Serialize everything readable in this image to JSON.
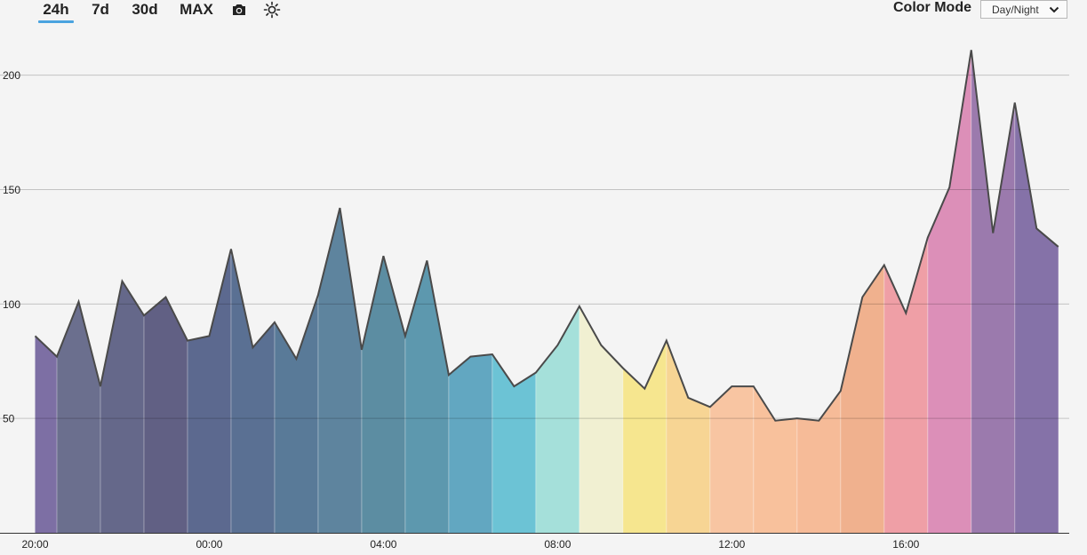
{
  "toolbar": {
    "ranges": [
      "24h",
      "7d",
      "30d",
      "MAX"
    ],
    "active_range": "24h",
    "icons": [
      "camera-icon",
      "sun-icon"
    ],
    "color_mode_label": "Color Mode",
    "color_mode_value": "Day/Night"
  },
  "chart_data": {
    "type": "area",
    "title": "",
    "xlabel": "",
    "ylabel": "",
    "ylim": [
      0,
      222
    ],
    "grid": true,
    "y_ticks": [
      "50",
      "100",
      "150",
      "200"
    ],
    "y_tick_values": [
      50,
      100,
      150,
      200
    ],
    "x_ticks": [
      "20:00",
      "00:00",
      "04:00",
      "08:00",
      "12:00",
      "16:00"
    ],
    "x_tick_hours": [
      0,
      4,
      8,
      12,
      16,
      20
    ],
    "x_start": "20:00",
    "x_end": "19:30",
    "x_step_minutes": 30,
    "values": [
      86,
      77,
      101,
      64,
      110,
      95,
      103,
      84,
      86,
      124,
      81,
      92,
      76,
      104,
      142,
      80,
      121,
      86,
      119,
      69,
      77,
      78,
      64,
      70,
      82,
      99,
      82,
      72,
      63,
      84,
      59,
      55,
      64,
      64,
      49,
      50,
      49,
      62,
      103,
      117,
      96,
      129,
      151,
      211,
      131,
      188,
      133,
      125
    ],
    "hour_band_colors": [
      "#7d6fa4",
      "#6b6f8e",
      "#65688a",
      "#616084",
      "#5c698f",
      "#5a7093",
      "#597a98",
      "#5e849e",
      "#5c8da2",
      "#5d98ae",
      "#62a7c1",
      "#6cc3d5",
      "#a5e0da",
      "#f1f0d2",
      "#f6e68f",
      "#f7d594",
      "#f8c5a2",
      "#f8c19c",
      "#f6bb98",
      "#f0b18e",
      "#ef9fa6",
      "#dc8fb8",
      "#9b7aad",
      "#8572a8"
    ],
    "line_color": "#4a4a4a"
  }
}
